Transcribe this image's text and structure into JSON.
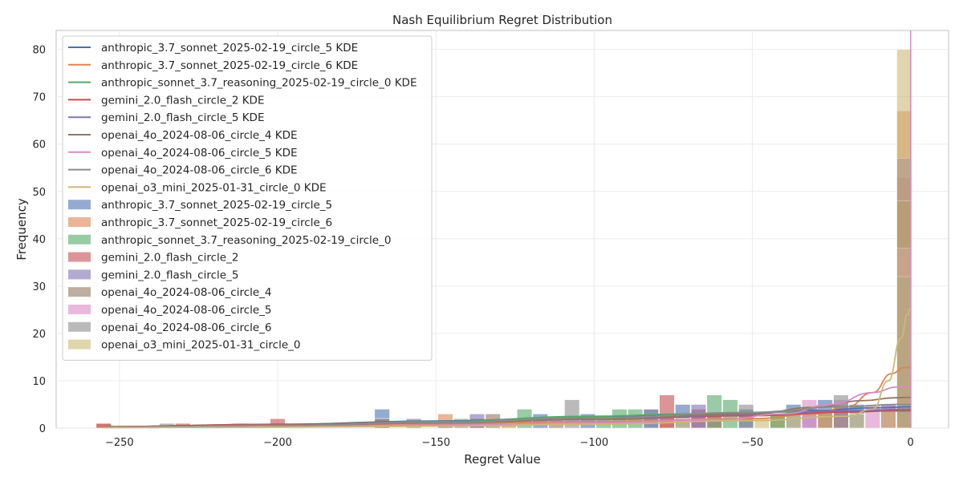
{
  "chart_data": {
    "type": "histogram",
    "title": "Nash Equilibrium Regret Distribution",
    "xlabel": "Regret Value",
    "ylabel": "Frequency",
    "xlim": [
      -270,
      12
    ],
    "ylim": [
      0,
      84
    ],
    "xticks": [
      -250,
      -200,
      -150,
      -100,
      -50,
      0
    ],
    "yticks": [
      0,
      10,
      20,
      30,
      40,
      50,
      60,
      70,
      80
    ],
    "grid": true,
    "legend_position": "upper-left",
    "bin_width": 5,
    "kde_line": {
      "x": 0
    },
    "series": [
      {
        "name": "anthropic_3.7_sonnet_2025-02-19_circle_5",
        "kde_label": "anthropic_3.7_sonnet_2025-02-19_circle_5 KDE",
        "color": "#4c72b0",
        "bins": [
          {
            "x": -167,
            "count": 4
          },
          {
            "x": -147,
            "count": 1
          },
          {
            "x": -117,
            "count": 3
          },
          {
            "x": -102,
            "count": 3
          },
          {
            "x": -72,
            "count": 5
          },
          {
            "x": -52,
            "count": 4
          },
          {
            "x": -37,
            "count": 5
          },
          {
            "x": -27,
            "count": 6
          },
          {
            "x": -17,
            "count": 5
          },
          {
            "x": -7,
            "count": 5
          },
          {
            "x": -2,
            "count": 31
          }
        ],
        "kde": [
          [
            -255,
            0.3
          ],
          [
            -200,
            0.8
          ],
          [
            -150,
            1.5
          ],
          [
            -100,
            2.4
          ],
          [
            -60,
            3.0
          ],
          [
            -30,
            3.8
          ],
          [
            -10,
            4.3
          ],
          [
            0,
            4.5
          ]
        ]
      },
      {
        "name": "anthropic_3.7_sonnet_2025-02-19_circle_6",
        "kde_label": "anthropic_3.7_sonnet_2025-02-19_circle_6 KDE",
        "color": "#dd8452",
        "bins": [
          {
            "x": -255,
            "count": 1
          },
          {
            "x": -200,
            "count": 1
          },
          {
            "x": -147,
            "count": 3
          },
          {
            "x": -127,
            "count": 2
          },
          {
            "x": -77,
            "count": 3
          },
          {
            "x": -42,
            "count": 3
          },
          {
            "x": -22,
            "count": 4
          },
          {
            "x": -7,
            "count": 4
          },
          {
            "x": -2,
            "count": 67
          }
        ],
        "kde": [
          [
            -255,
            0.2
          ],
          [
            -200,
            0.5
          ],
          [
            -150,
            0.9
          ],
          [
            -100,
            1.4
          ],
          [
            -50,
            2.0
          ],
          [
            -30,
            3.0
          ],
          [
            -20,
            4.5
          ],
          [
            -12,
            7.5
          ],
          [
            -6,
            11.5
          ],
          [
            -2,
            12.8
          ],
          [
            0,
            12.8
          ]
        ]
      },
      {
        "name": "anthropic_sonnet_3.7_reasoning_2025-02-19_circle_0",
        "kde_label": "anthropic_sonnet_3.7_reasoning_2025-02-19_circle_0 KDE",
        "color": "#55a868",
        "bins": [
          {
            "x": -122,
            "count": 4
          },
          {
            "x": -97,
            "count": 2
          },
          {
            "x": -92,
            "count": 4
          },
          {
            "x": -87,
            "count": 4
          },
          {
            "x": -82,
            "count": 4
          },
          {
            "x": -62,
            "count": 7
          },
          {
            "x": -57,
            "count": 6
          },
          {
            "x": -42,
            "count": 3
          },
          {
            "x": -2,
            "count": 25
          }
        ],
        "kde": [
          [
            -255,
            0.3
          ],
          [
            -200,
            0.7
          ],
          [
            -150,
            1.4
          ],
          [
            -100,
            2.5
          ],
          [
            -70,
            3.0
          ],
          [
            -40,
            3.4
          ],
          [
            -10,
            3.6
          ],
          [
            0,
            3.6
          ]
        ]
      },
      {
        "name": "gemini_2.0_flash_circle_2",
        "kde_label": "gemini_2.0_flash_circle_2 KDE",
        "color": "#c44e52",
        "bins": [
          {
            "x": -255,
            "count": 1
          },
          {
            "x": -230,
            "count": 1
          },
          {
            "x": -212,
            "count": 1
          },
          {
            "x": -200,
            "count": 2
          },
          {
            "x": -167,
            "count": 2
          },
          {
            "x": -137,
            "count": 2
          },
          {
            "x": -77,
            "count": 7
          },
          {
            "x": -67,
            "count": 4
          },
          {
            "x": -27,
            "count": 4
          },
          {
            "x": -2,
            "count": 53
          }
        ],
        "kde": [
          [
            -255,
            0.3
          ],
          [
            -200,
            0.8
          ],
          [
            -150,
            1.2
          ],
          [
            -100,
            1.9
          ],
          [
            -50,
            2.6
          ],
          [
            -20,
            3.4
          ],
          [
            0,
            3.8
          ]
        ]
      },
      {
        "name": "gemini_2.0_flash_circle_5",
        "kde_label": "gemini_2.0_flash_circle_5 KDE",
        "color": "#8172b3",
        "bins": [
          {
            "x": -137,
            "count": 3
          },
          {
            "x": -82,
            "count": 4
          },
          {
            "x": -67,
            "count": 5
          },
          {
            "x": -32,
            "count": 4
          },
          {
            "x": -2,
            "count": 57
          }
        ],
        "kde": [
          [
            -255,
            0.2
          ],
          [
            -200,
            0.5
          ],
          [
            -150,
            1.1
          ],
          [
            -100,
            1.8
          ],
          [
            -50,
            2.8
          ],
          [
            -20,
            3.7
          ],
          [
            0,
            4.0
          ]
        ]
      },
      {
        "name": "openai_4o_2024-08-06_circle_4",
        "kde_label": "openai_4o_2024-08-06_circle_4 KDE",
        "color": "#937860",
        "bins": [
          {
            "x": -157,
            "count": 2
          },
          {
            "x": -132,
            "count": 3
          },
          {
            "x": -112,
            "count": 2
          },
          {
            "x": -62,
            "count": 3
          },
          {
            "x": -22,
            "count": 5
          },
          {
            "x": -2,
            "count": 48
          }
        ],
        "kde": [
          [
            -255,
            0.2
          ],
          [
            -200,
            0.6
          ],
          [
            -150,
            1.1
          ],
          [
            -100,
            1.9
          ],
          [
            -50,
            3.0
          ],
          [
            -30,
            4.4
          ],
          [
            -15,
            5.8
          ],
          [
            -5,
            6.4
          ],
          [
            0,
            6.5
          ]
        ]
      },
      {
        "name": "openai_4o_2024-08-06_circle_5",
        "kde_label": "openai_4o_2024-08-06_circle_5 KDE",
        "color": "#da8bc3",
        "bins": [
          {
            "x": -32,
            "count": 6
          },
          {
            "x": -22,
            "count": 6
          },
          {
            "x": -12,
            "count": 5
          },
          {
            "x": -7,
            "count": 5
          },
          {
            "x": -2,
            "count": 38
          }
        ],
        "kde": [
          [
            -255,
            0.1
          ],
          [
            -200,
            0.3
          ],
          [
            -150,
            0.6
          ],
          [
            -100,
            1.1
          ],
          [
            -60,
            1.8
          ],
          [
            -40,
            3.0
          ],
          [
            -25,
            5.0
          ],
          [
            -12,
            7.5
          ],
          [
            -4,
            8.7
          ],
          [
            0,
            8.8
          ]
        ]
      },
      {
        "name": "openai_4o_2024-08-06_circle_6",
        "kde_label": "openai_4o_2024-08-06_circle_6 KDE",
        "color": "#8c8c8c",
        "bins": [
          {
            "x": -235,
            "count": 1
          },
          {
            "x": -167,
            "count": 2
          },
          {
            "x": -142,
            "count": 2
          },
          {
            "x": -107,
            "count": 6
          },
          {
            "x": -52,
            "count": 5
          },
          {
            "x": -22,
            "count": 7
          },
          {
            "x": -2,
            "count": 32
          }
        ],
        "kde": [
          [
            -255,
            0.2
          ],
          [
            -200,
            0.6
          ],
          [
            -150,
            1.2
          ],
          [
            -100,
            2.2
          ],
          [
            -50,
            3.3
          ],
          [
            -20,
            4.5
          ],
          [
            -5,
            5.0
          ],
          [
            0,
            5.0
          ]
        ]
      },
      {
        "name": "openai_o3_mini_2025-01-31_circle_0",
        "kde_label": "openai_o3_mini_2025-01-31_circle_0 KDE",
        "color": "#ccb974",
        "bins": [
          {
            "x": -127,
            "count": 1
          },
          {
            "x": -72,
            "count": 2
          },
          {
            "x": -47,
            "count": 2
          },
          {
            "x": -37,
            "count": 3
          },
          {
            "x": -27,
            "count": 4
          },
          {
            "x": -17,
            "count": 3
          },
          {
            "x": -7,
            "count": 4
          },
          {
            "x": -2,
            "count": 80
          }
        ],
        "kde": [
          [
            -255,
            0.1
          ],
          [
            -200,
            0.2
          ],
          [
            -150,
            0.4
          ],
          [
            -100,
            0.8
          ],
          [
            -50,
            1.6
          ],
          [
            -20,
            2.5
          ],
          [
            -12,
            4.0
          ],
          [
            -7,
            10.0
          ],
          [
            -3,
            19.0
          ],
          [
            -1,
            24.0
          ],
          [
            0,
            25.3
          ]
        ]
      }
    ]
  }
}
